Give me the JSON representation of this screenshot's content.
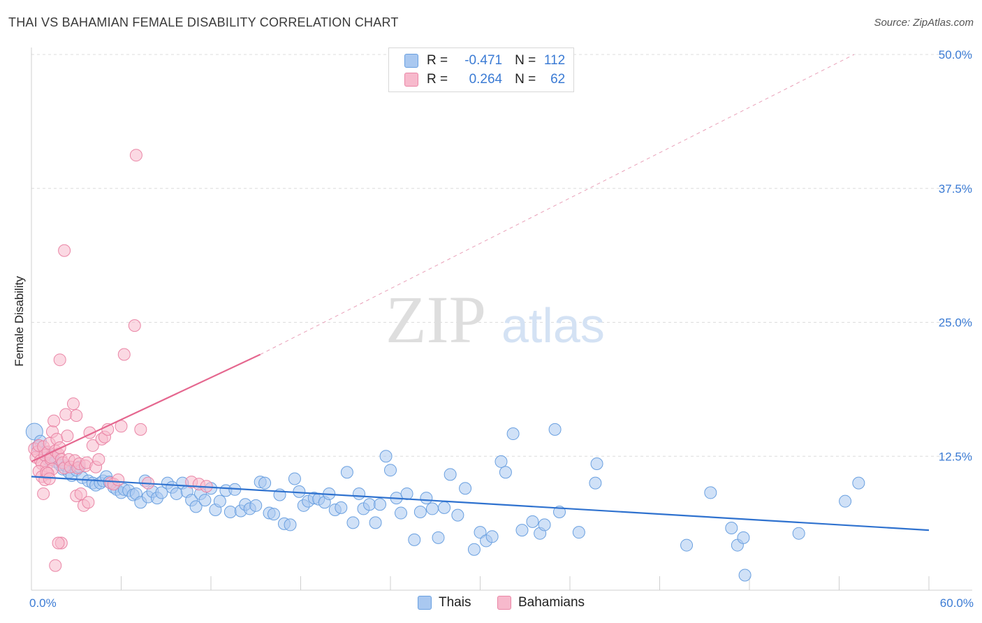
{
  "header": {
    "title": "THAI VS BAHAMIAN FEMALE DISABILITY CORRELATION CHART",
    "source": "Source: ZipAtlas.com"
  },
  "watermark": {
    "zip": "ZIP",
    "atlas": "atlas"
  },
  "legend": {
    "rows": [
      {
        "r_label": "R =",
        "r_value": "-0.471",
        "n_label": "N =",
        "n_value": "112",
        "color": "#a9c8f0",
        "edge": "#6aa0e0"
      },
      {
        "r_label": "R =",
        "r_value": "0.264",
        "n_label": "N =",
        "n_value": "62",
        "color": "#f7b9cc",
        "edge": "#ea86a6"
      }
    ]
  },
  "chart_data": {
    "type": "scatter",
    "title": "THAI VS BAHAMIAN FEMALE DISABILITY CORRELATION CHART",
    "xlabel": "",
    "ylabel": "Female Disability",
    "xlim": [
      0,
      60
    ],
    "ylim": [
      0,
      50
    ],
    "x_tick_labels": [
      "0.0%",
      "60.0%"
    ],
    "y_ticks": [
      12.5,
      25.0,
      37.5,
      50.0
    ],
    "y_tick_labels": [
      "12.5%",
      "25.0%",
      "37.5%",
      "50.0%"
    ],
    "grid": "horizontal dashed",
    "legend_position": "top-center",
    "series": [
      {
        "name": "Thais",
        "color": "#6aa0e0",
        "fill": "#a9c8f0",
        "trend": {
          "x": [
            0,
            60
          ],
          "y": [
            10.6,
            5.6
          ],
          "style": "solid",
          "color": "#2f72cf"
        },
        "points": [
          [
            0.2,
            14.8
          ],
          [
            0.4,
            13.4
          ],
          [
            0.6,
            13.9
          ],
          [
            0.9,
            12.9
          ],
          [
            1.1,
            12.2
          ],
          [
            1.4,
            12.5
          ],
          [
            1.6,
            12.0
          ],
          [
            1.9,
            11.7
          ],
          [
            2.1,
            11.3
          ],
          [
            2.3,
            11.6
          ],
          [
            2.5,
            11.0
          ],
          [
            2.7,
            10.7
          ],
          [
            3.0,
            11.2
          ],
          [
            3.2,
            11.5
          ],
          [
            3.4,
            10.5
          ],
          [
            3.8,
            10.2
          ],
          [
            4.1,
            10.0
          ],
          [
            4.3,
            9.8
          ],
          [
            4.6,
            10.0
          ],
          [
            4.8,
            10.2
          ],
          [
            5.0,
            10.6
          ],
          [
            5.2,
            10.1
          ],
          [
            5.5,
            9.6
          ],
          [
            5.7,
            9.4
          ],
          [
            6.0,
            9.1
          ],
          [
            6.2,
            9.4
          ],
          [
            6.5,
            9.3
          ],
          [
            6.8,
            8.9
          ],
          [
            7.0,
            9.0
          ],
          [
            7.3,
            8.2
          ],
          [
            7.6,
            10.2
          ],
          [
            7.8,
            8.7
          ],
          [
            8.1,
            9.2
          ],
          [
            8.4,
            8.6
          ],
          [
            8.7,
            9.1
          ],
          [
            9.1,
            10.0
          ],
          [
            9.4,
            9.6
          ],
          [
            9.7,
            9.0
          ],
          [
            10.1,
            10.0
          ],
          [
            10.4,
            9.2
          ],
          [
            10.7,
            8.4
          ],
          [
            11.0,
            7.8
          ],
          [
            11.3,
            9.0
          ],
          [
            11.6,
            8.4
          ],
          [
            12.0,
            9.5
          ],
          [
            12.3,
            7.5
          ],
          [
            12.6,
            8.3
          ],
          [
            13.0,
            9.3
          ],
          [
            13.3,
            7.3
          ],
          [
            13.6,
            9.4
          ],
          [
            14.0,
            7.4
          ],
          [
            14.3,
            8.0
          ],
          [
            14.6,
            7.6
          ],
          [
            15.0,
            7.9
          ],
          [
            15.3,
            10.1
          ],
          [
            15.6,
            10.0
          ],
          [
            15.9,
            7.2
          ],
          [
            16.2,
            7.1
          ],
          [
            16.6,
            8.9
          ],
          [
            16.9,
            6.2
          ],
          [
            17.3,
            6.1
          ],
          [
            17.6,
            10.4
          ],
          [
            17.9,
            9.2
          ],
          [
            18.2,
            7.9
          ],
          [
            18.5,
            8.3
          ],
          [
            18.9,
            8.6
          ],
          [
            19.2,
            8.5
          ],
          [
            19.6,
            8.2
          ],
          [
            19.9,
            9.0
          ],
          [
            20.3,
            7.5
          ],
          [
            20.7,
            7.7
          ],
          [
            21.1,
            11.0
          ],
          [
            21.5,
            6.3
          ],
          [
            21.9,
            9.0
          ],
          [
            22.2,
            7.6
          ],
          [
            22.6,
            8.0
          ],
          [
            23.0,
            6.3
          ],
          [
            23.3,
            8.0
          ],
          [
            23.7,
            12.5
          ],
          [
            24.0,
            11.2
          ],
          [
            24.4,
            8.6
          ],
          [
            24.7,
            7.2
          ],
          [
            25.1,
            9.0
          ],
          [
            25.6,
            4.7
          ],
          [
            26.0,
            7.3
          ],
          [
            26.4,
            8.6
          ],
          [
            26.8,
            7.6
          ],
          [
            27.2,
            4.9
          ],
          [
            27.6,
            7.7
          ],
          [
            28.0,
            10.8
          ],
          [
            28.5,
            7.0
          ],
          [
            29.0,
            9.5
          ],
          [
            29.6,
            3.8
          ],
          [
            30.0,
            5.4
          ],
          [
            30.4,
            4.6
          ],
          [
            30.8,
            5.0
          ],
          [
            31.4,
            12.0
          ],
          [
            31.7,
            11.0
          ],
          [
            32.2,
            14.6
          ],
          [
            32.8,
            5.6
          ],
          [
            33.5,
            6.4
          ],
          [
            34.0,
            5.3
          ],
          [
            34.3,
            6.1
          ],
          [
            35.0,
            15.0
          ],
          [
            35.3,
            7.3
          ],
          [
            36.6,
            5.4
          ],
          [
            37.8,
            11.8
          ],
          [
            37.7,
            10.0
          ],
          [
            43.8,
            4.2
          ],
          [
            45.4,
            9.1
          ],
          [
            46.8,
            5.8
          ],
          [
            47.2,
            4.2
          ],
          [
            47.6,
            4.9
          ],
          [
            47.7,
            1.4
          ],
          [
            51.3,
            5.3
          ],
          [
            54.4,
            8.3
          ],
          [
            55.3,
            10.0
          ]
        ]
      },
      {
        "name": "Bahamians",
        "color": "#ea86a6",
        "fill": "#f7b9cc",
        "trend": {
          "x": [
            0,
            15.3
          ],
          "y": [
            12.0,
            22.0
          ],
          "dashed_to": [
            55.0,
            50.0
          ],
          "style": "solid-then-dashed",
          "color": "#e5678f"
        },
        "points": [
          [
            0.2,
            13.2
          ],
          [
            0.3,
            12.4
          ],
          [
            0.4,
            12.9
          ],
          [
            0.5,
            13.5
          ],
          [
            0.6,
            12.1
          ],
          [
            0.7,
            11.8
          ],
          [
            0.8,
            13.4
          ],
          [
            0.9,
            12.6
          ],
          [
            1.0,
            11.6
          ],
          [
            1.1,
            12.9
          ],
          [
            1.2,
            13.7
          ],
          [
            1.3,
            12.2
          ],
          [
            1.4,
            11.3
          ],
          [
            0.5,
            11.1
          ],
          [
            0.7,
            10.6
          ],
          [
            0.8,
            9.0
          ],
          [
            0.9,
            10.3
          ],
          [
            1.0,
            11.0
          ],
          [
            1.1,
            10.9
          ],
          [
            1.2,
            10.4
          ],
          [
            1.3,
            12.4
          ],
          [
            1.4,
            14.8
          ],
          [
            1.5,
            15.8
          ],
          [
            1.6,
            13.0
          ],
          [
            1.7,
            14.1
          ],
          [
            1.8,
            12.7
          ],
          [
            1.9,
            13.3
          ],
          [
            2.0,
            12.2
          ],
          [
            2.1,
            11.9
          ],
          [
            2.2,
            11.4
          ],
          [
            1.9,
            21.5
          ],
          [
            2.0,
            4.4
          ],
          [
            2.2,
            31.7
          ],
          [
            2.3,
            16.4
          ],
          [
            2.4,
            14.4
          ],
          [
            2.5,
            12.2
          ],
          [
            2.6,
            11.5
          ],
          [
            2.8,
            17.4
          ],
          [
            2.9,
            12.1
          ],
          [
            3.0,
            16.3
          ],
          [
            3.1,
            11.4
          ],
          [
            3.2,
            11.8
          ],
          [
            3.0,
            8.8
          ],
          [
            3.3,
            9.0
          ],
          [
            3.5,
            7.9
          ],
          [
            3.6,
            11.6
          ],
          [
            3.7,
            11.9
          ],
          [
            3.8,
            8.2
          ],
          [
            3.9,
            14.7
          ],
          [
            4.1,
            13.5
          ],
          [
            4.3,
            11.5
          ],
          [
            4.5,
            12.2
          ],
          [
            4.7,
            14.1
          ],
          [
            4.9,
            14.3
          ],
          [
            5.1,
            15.0
          ],
          [
            5.3,
            10.0
          ],
          [
            5.5,
            9.9
          ],
          [
            5.8,
            10.3
          ],
          [
            6.0,
            15.3
          ],
          [
            6.2,
            22.0
          ],
          [
            6.9,
            24.7
          ],
          [
            7.0,
            40.6
          ],
          [
            7.3,
            15.0
          ],
          [
            7.8,
            10.0
          ],
          [
            10.7,
            10.1
          ],
          [
            11.2,
            9.9
          ],
          [
            11.7,
            9.7
          ],
          [
            1.6,
            2.3
          ],
          [
            1.8,
            4.4
          ]
        ]
      }
    ]
  },
  "bottom_legend": [
    {
      "label": "Thais",
      "color": "#a9c8f0",
      "edge": "#6aa0e0"
    },
    {
      "label": "Bahamians",
      "color": "#f7b9cc",
      "edge": "#ea86a6"
    }
  ]
}
